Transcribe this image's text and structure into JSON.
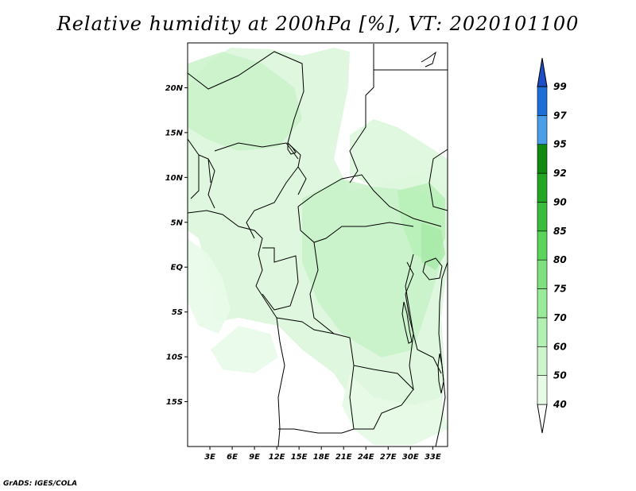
{
  "title": "Relative humidity at 200hPa [%], VT: 2020101100",
  "credit": "GrADS: IGES/COLA",
  "map": {
    "lon_range": [
      0,
      35
    ],
    "lat_range": [
      -20,
      25
    ],
    "lat_ticks": [
      "20N",
      "15N",
      "10N",
      "5N",
      "EQ",
      "5S",
      "10S",
      "15S"
    ],
    "lon_ticks": [
      "3E",
      "6E",
      "9E",
      "12E",
      "15E",
      "18E",
      "21E",
      "24E",
      "27E",
      "30E",
      "33E"
    ]
  },
  "colorbar": {
    "levels": [
      "40",
      "50",
      "60",
      "70",
      "75",
      "80",
      "85",
      "90",
      "92",
      "95",
      "97",
      "99"
    ],
    "colors": [
      "#ffffff",
      "#e6fae6",
      "#ccf5cc",
      "#b3f0b3",
      "#99eb99",
      "#7fe07f",
      "#5ad45a",
      "#3cbc3c",
      "#23a623",
      "#108a10",
      "#4c9ee8",
      "#1e6ed8",
      "#1c4ec8"
    ]
  }
}
